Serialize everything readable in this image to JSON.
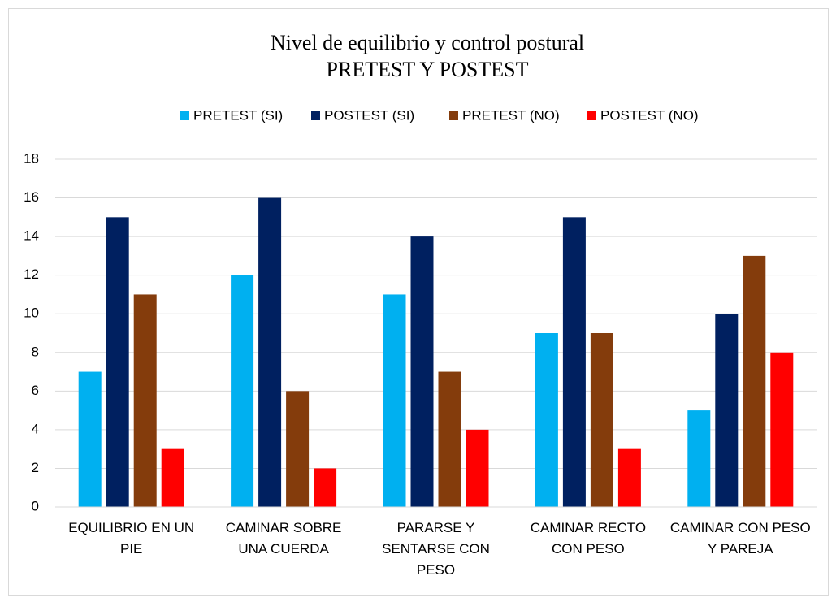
{
  "chart_data": {
    "type": "bar",
    "title": "Nivel de equilibrio y control postural",
    "subtitle": "PRETEST Y POSTEST",
    "categories": [
      "EQUILIBRIO EN UN PIE",
      "CAMINAR SOBRE UNA CUERDA",
      "PARARSE Y SENTARSE CON PESO",
      "CAMINAR RECTO CON PESO",
      "CAMINAR CON PESO Y PAREJA"
    ],
    "series": [
      {
        "name": "PRETEST (SI)",
        "color": "#00b0f0",
        "values": [
          7,
          12,
          11,
          9,
          5
        ]
      },
      {
        "name": "POSTEST (SI)",
        "color": "#002060",
        "values": [
          15,
          16,
          14,
          15,
          10
        ]
      },
      {
        "name": "PRETEST (NO)",
        "color": "#843c0c",
        "values": [
          11,
          6,
          7,
          9,
          13
        ]
      },
      {
        "name": "POSTEST (NO)",
        "color": "#ff0000",
        "values": [
          3,
          2,
          4,
          3,
          8
        ]
      }
    ],
    "ylim": [
      0,
      18
    ],
    "yticks": [
      0,
      2,
      4,
      6,
      8,
      10,
      12,
      14,
      16,
      18
    ],
    "grid": true,
    "legend": "top"
  }
}
